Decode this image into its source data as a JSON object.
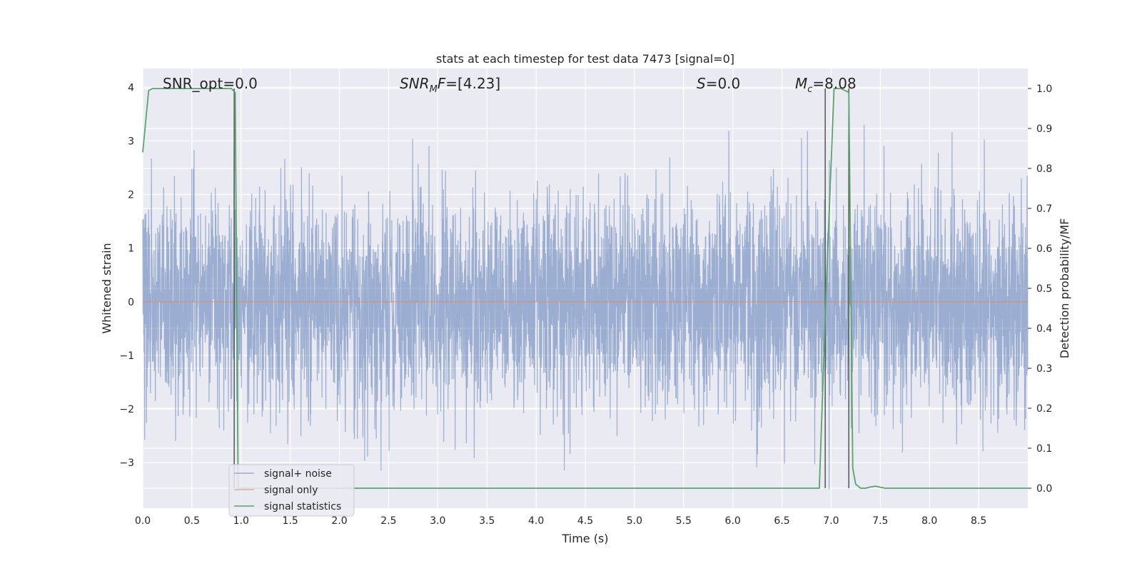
{
  "chart_data": {
    "type": "line",
    "title": "stats at each timestep for test data 7473 [signal=0]",
    "xlabel": "Time (s)",
    "ylabel": "Whitened strain",
    "y2label": "Detection probability/MF",
    "xlim": [
      0.0,
      9.0
    ],
    "ylim": [
      -3.85,
      4.35
    ],
    "y2lim": [
      -0.05,
      1.05
    ],
    "xticks": [
      "0.0",
      "0.5",
      "1.0",
      "1.5",
      "2.0",
      "2.5",
      "3.0",
      "3.5",
      "4.0",
      "4.5",
      "5.0",
      "5.5",
      "6.0",
      "6.5",
      "7.0",
      "7.5",
      "8.0",
      "8.5"
    ],
    "xtick_values": [
      0.0,
      0.5,
      1.0,
      1.5,
      2.0,
      2.5,
      3.0,
      3.5,
      4.0,
      4.5,
      5.0,
      5.5,
      6.0,
      6.5,
      7.0,
      7.5,
      8.0,
      8.5
    ],
    "yticks": [
      "4",
      "3",
      "2",
      "1",
      "0",
      "−1",
      "−2",
      "−3"
    ],
    "ytick_values": [
      4,
      3,
      2,
      1,
      0,
      -1,
      -2,
      -3
    ],
    "y2ticks": [
      "1.0",
      "0.9",
      "0.8",
      "0.7",
      "0.6",
      "0.5",
      "0.4",
      "0.3",
      "0.2",
      "0.1",
      "0.0"
    ],
    "y2tick_values": [
      1.0,
      0.9,
      0.8,
      0.7,
      0.6,
      0.5,
      0.4,
      0.3,
      0.2,
      0.1,
      0.0
    ],
    "grid": true,
    "legend_position": "bottom-left",
    "annotations": {
      "snr_opt": "SNR_opt=0.0",
      "snr_mf_base": "SNR",
      "snr_mf_sub": "M",
      "snr_mf_rest": "F=[4.23]",
      "s_main": "S",
      "s_rest": "=0.0",
      "mc_main": "M",
      "mc_sub": "c",
      "mc_rest": "=8.08"
    },
    "series": [
      {
        "name": "signal+ noise",
        "color": "#4c72b0",
        "axis": "left",
        "description_samples": 4500,
        "typical_range": [
          -2.0,
          2.0
        ],
        "extremes": [
          -3.5,
          3.3
        ]
      },
      {
        "name": "signal only",
        "color": "#dd8452",
        "axis": "left",
        "x": [
          0.0,
          9.0
        ],
        "y": [
          0.0,
          0.0
        ]
      },
      {
        "name": "signal statistics",
        "color": "#55a868",
        "axis": "right",
        "x": [
          0.0,
          0.06,
          0.1,
          0.2,
          0.5,
          0.8,
          0.9,
          0.94,
          0.97,
          1.0,
          1.5,
          2.0,
          3.0,
          4.0,
          5.0,
          6.0,
          6.5,
          6.88,
          6.95,
          7.03,
          7.1,
          7.18,
          7.22,
          7.25,
          7.3,
          7.35,
          7.4,
          7.45,
          7.55,
          8.0,
          9.0
        ],
        "y": [
          0.84,
          0.995,
          1.0,
          1.0,
          1.0,
          1.0,
          1.0,
          0.99,
          0.0,
          0.0,
          0.0,
          0.0,
          0.0,
          0.0,
          0.0,
          0.0,
          0.0,
          0.0,
          0.5,
          1.0,
          1.0,
          0.99,
          0.05,
          0.01,
          0.0,
          0.0,
          0.003,
          0.005,
          0.0,
          0.0,
          0.0
        ]
      }
    ],
    "vertical_markers": {
      "color": "#555555",
      "x": [
        0.93,
        6.94,
        7.18
      ]
    }
  }
}
